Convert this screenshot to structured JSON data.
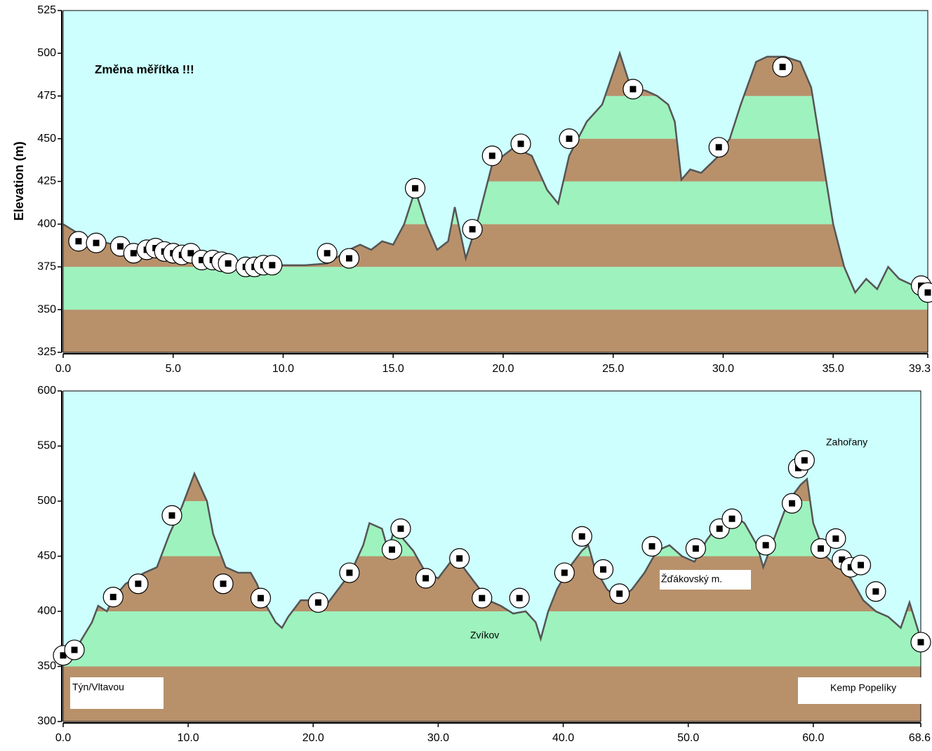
{
  "chart_data": [
    {
      "type": "profile",
      "annotation": "Změna měřítka !!!",
      "ylabel": "Elevation (m)",
      "xlim": [
        0,
        39.3
      ],
      "ylim": [
        325,
        525
      ],
      "xticks": [
        {
          "value": 0,
          "label": "0.0"
        },
        {
          "value": 5,
          "label": "5.0"
        },
        {
          "value": 10,
          "label": "10.0"
        },
        {
          "value": 15,
          "label": "15.0"
        },
        {
          "value": 20,
          "label": "20.0"
        },
        {
          "value": 25,
          "label": "25.0"
        },
        {
          "value": 30,
          "label": "30.0"
        },
        {
          "value": 35,
          "label": "35.0"
        },
        39.3
      ],
      "yticks": [
        325,
        350,
        375,
        400,
        425,
        450,
        475,
        500,
        525
      ],
      "background": "#ccfffe",
      "band_colors": [
        "#b8916b",
        "#9ef2bd"
      ],
      "profile": {
        "color": "#555555",
        "x": [
          0,
          1,
          2,
          3,
          4,
          5,
          6,
          7,
          8,
          9,
          10,
          11,
          12,
          13,
          13.5,
          14,
          14.5,
          15,
          15.5,
          16,
          16.5,
          17,
          17.5,
          17.8,
          18.3,
          18.8,
          19,
          19.5,
          20.5,
          21.3,
          22,
          22.5,
          23,
          23.8,
          24.5,
          25.3,
          25.8,
          26.5,
          27,
          27.5,
          27.8,
          28.1,
          28.5,
          29,
          29.8,
          30.3,
          30.8,
          31.5,
          32,
          32.8,
          33.5,
          34,
          34.5,
          35,
          35.5,
          36,
          36.5,
          37,
          37.5,
          38,
          38.5,
          39.3
        ],
        "values": [
          400,
          392,
          389,
          386,
          385,
          384,
          382,
          380,
          376,
          375,
          376,
          376,
          377,
          385,
          388,
          385,
          390,
          388,
          400,
          420,
          400,
          385,
          390,
          410,
          380,
          400,
          410,
          435,
          445,
          440,
          420,
          412,
          440,
          460,
          470,
          500,
          480,
          478,
          475,
          470,
          460,
          426,
          432,
          430,
          440,
          450,
          470,
          495,
          498,
          498,
          495,
          480,
          440,
          400,
          375,
          360,
          368,
          362,
          375,
          368,
          365,
          360
        ]
      },
      "waypoints": {
        "x": [
          0.7,
          1.5,
          2.6,
          3.2,
          3.8,
          4.2,
          4.6,
          5,
          5.4,
          5.8,
          6.3,
          6.8,
          7.2,
          7.5,
          8.3,
          8.7,
          9.1,
          9.5,
          12,
          13,
          16,
          18.6,
          19.5,
          20.8,
          23,
          25.9,
          29.8,
          32.7,
          39,
          39.3
        ],
        "values": [
          390,
          389,
          387,
          383,
          385,
          386,
          384,
          383,
          382,
          383,
          379,
          379,
          378,
          377,
          375,
          375,
          376,
          376,
          383,
          380,
          421,
          397,
          440,
          447,
          450,
          479,
          445,
          492,
          364,
          360
        ]
      }
    },
    {
      "type": "profile",
      "annotations": [
        "Týn/Vltavou",
        "Zvíkov",
        "Žďákovský m.",
        "Zahořany",
        "Kemp Popelíky"
      ],
      "xlim": [
        0,
        68.6
      ],
      "ylim": [
        300,
        600
      ],
      "xticks": [
        {
          "value": 0,
          "label": "0.0"
        },
        {
          "value": 10,
          "label": "10.0"
        },
        {
          "value": 20,
          "label": "20.0"
        },
        {
          "value": 30,
          "label": "30.0"
        },
        {
          "value": 40,
          "label": "40.0"
        },
        {
          "value": 50,
          "label": "50.0"
        },
        {
          "value": 60,
          "label": "60.0"
        },
        68.6
      ],
      "yticks": [
        300,
        350,
        400,
        450,
        500,
        550,
        600
      ],
      "background": "#ccfffe",
      "band_colors": [
        "#b8916b",
        "#9ef2bd"
      ],
      "profile": {
        "color": "#555555",
        "x": [
          0,
          1,
          1.5,
          2.3,
          2.8,
          3.5,
          4,
          5,
          6.5,
          7.5,
          8.5,
          9.5,
          10.5,
          11.5,
          12,
          13,
          14,
          15,
          15.5,
          16,
          17,
          17.5,
          18,
          19,
          20,
          21,
          22,
          23,
          24,
          24.5,
          25.5,
          26,
          26.5,
          28,
          29,
          30,
          31,
          32,
          33,
          34,
          35,
          36,
          37,
          37.8,
          38.2,
          38.8,
          39.5,
          40.5,
          41.5,
          42,
          42.5,
          43.5,
          44.5,
          45.5,
          46.5,
          47.5,
          48.5,
          49.5,
          50.5,
          51.5,
          52.5,
          53.5,
          54.5,
          55.5,
          56,
          57,
          58,
          59,
          59.5,
          60,
          61,
          62,
          63,
          64,
          65,
          66,
          67,
          67.7,
          68.6
        ],
        "values": [
          360,
          365,
          375,
          390,
          405,
          400,
          412,
          425,
          435,
          440,
          470,
          495,
          525,
          500,
          470,
          440,
          435,
          435,
          425,
          410,
          390,
          385,
          395,
          410,
          410,
          405,
          420,
          435,
          460,
          480,
          475,
          455,
          475,
          455,
          435,
          430,
          445,
          440,
          425,
          410,
          405,
          398,
          400,
          390,
          375,
          400,
          420,
          440,
          455,
          460,
          440,
          420,
          410,
          420,
          435,
          455,
          460,
          450,
          445,
          465,
          480,
          488,
          480,
          460,
          440,
          470,
          500,
          515,
          520,
          480,
          450,
          440,
          430,
          410,
          400,
          395,
          385,
          408,
          375
        ]
      },
      "waypoints": {
        "x": [
          0,
          0.9,
          4,
          6,
          8.7,
          12.8,
          15.8,
          20.4,
          22.9,
          26.3,
          27,
          29,
          31.7,
          33.5,
          36.5,
          40.1,
          41.5,
          43.2,
          44.5,
          47.1,
          50.6,
          52.5,
          53.5,
          56.2,
          58.3,
          58.8,
          59.3,
          60.6,
          61.8,
          62.3,
          63,
          63.8,
          65,
          68.6
        ],
        "values": [
          360,
          365,
          413,
          425,
          487,
          425,
          412,
          408,
          435,
          456,
          475,
          430,
          448,
          412,
          412,
          435,
          468,
          438,
          416,
          459,
          457,
          475,
          484,
          460,
          498,
          530,
          537,
          457,
          466,
          447,
          440,
          442,
          418,
          372
        ]
      }
    }
  ]
}
